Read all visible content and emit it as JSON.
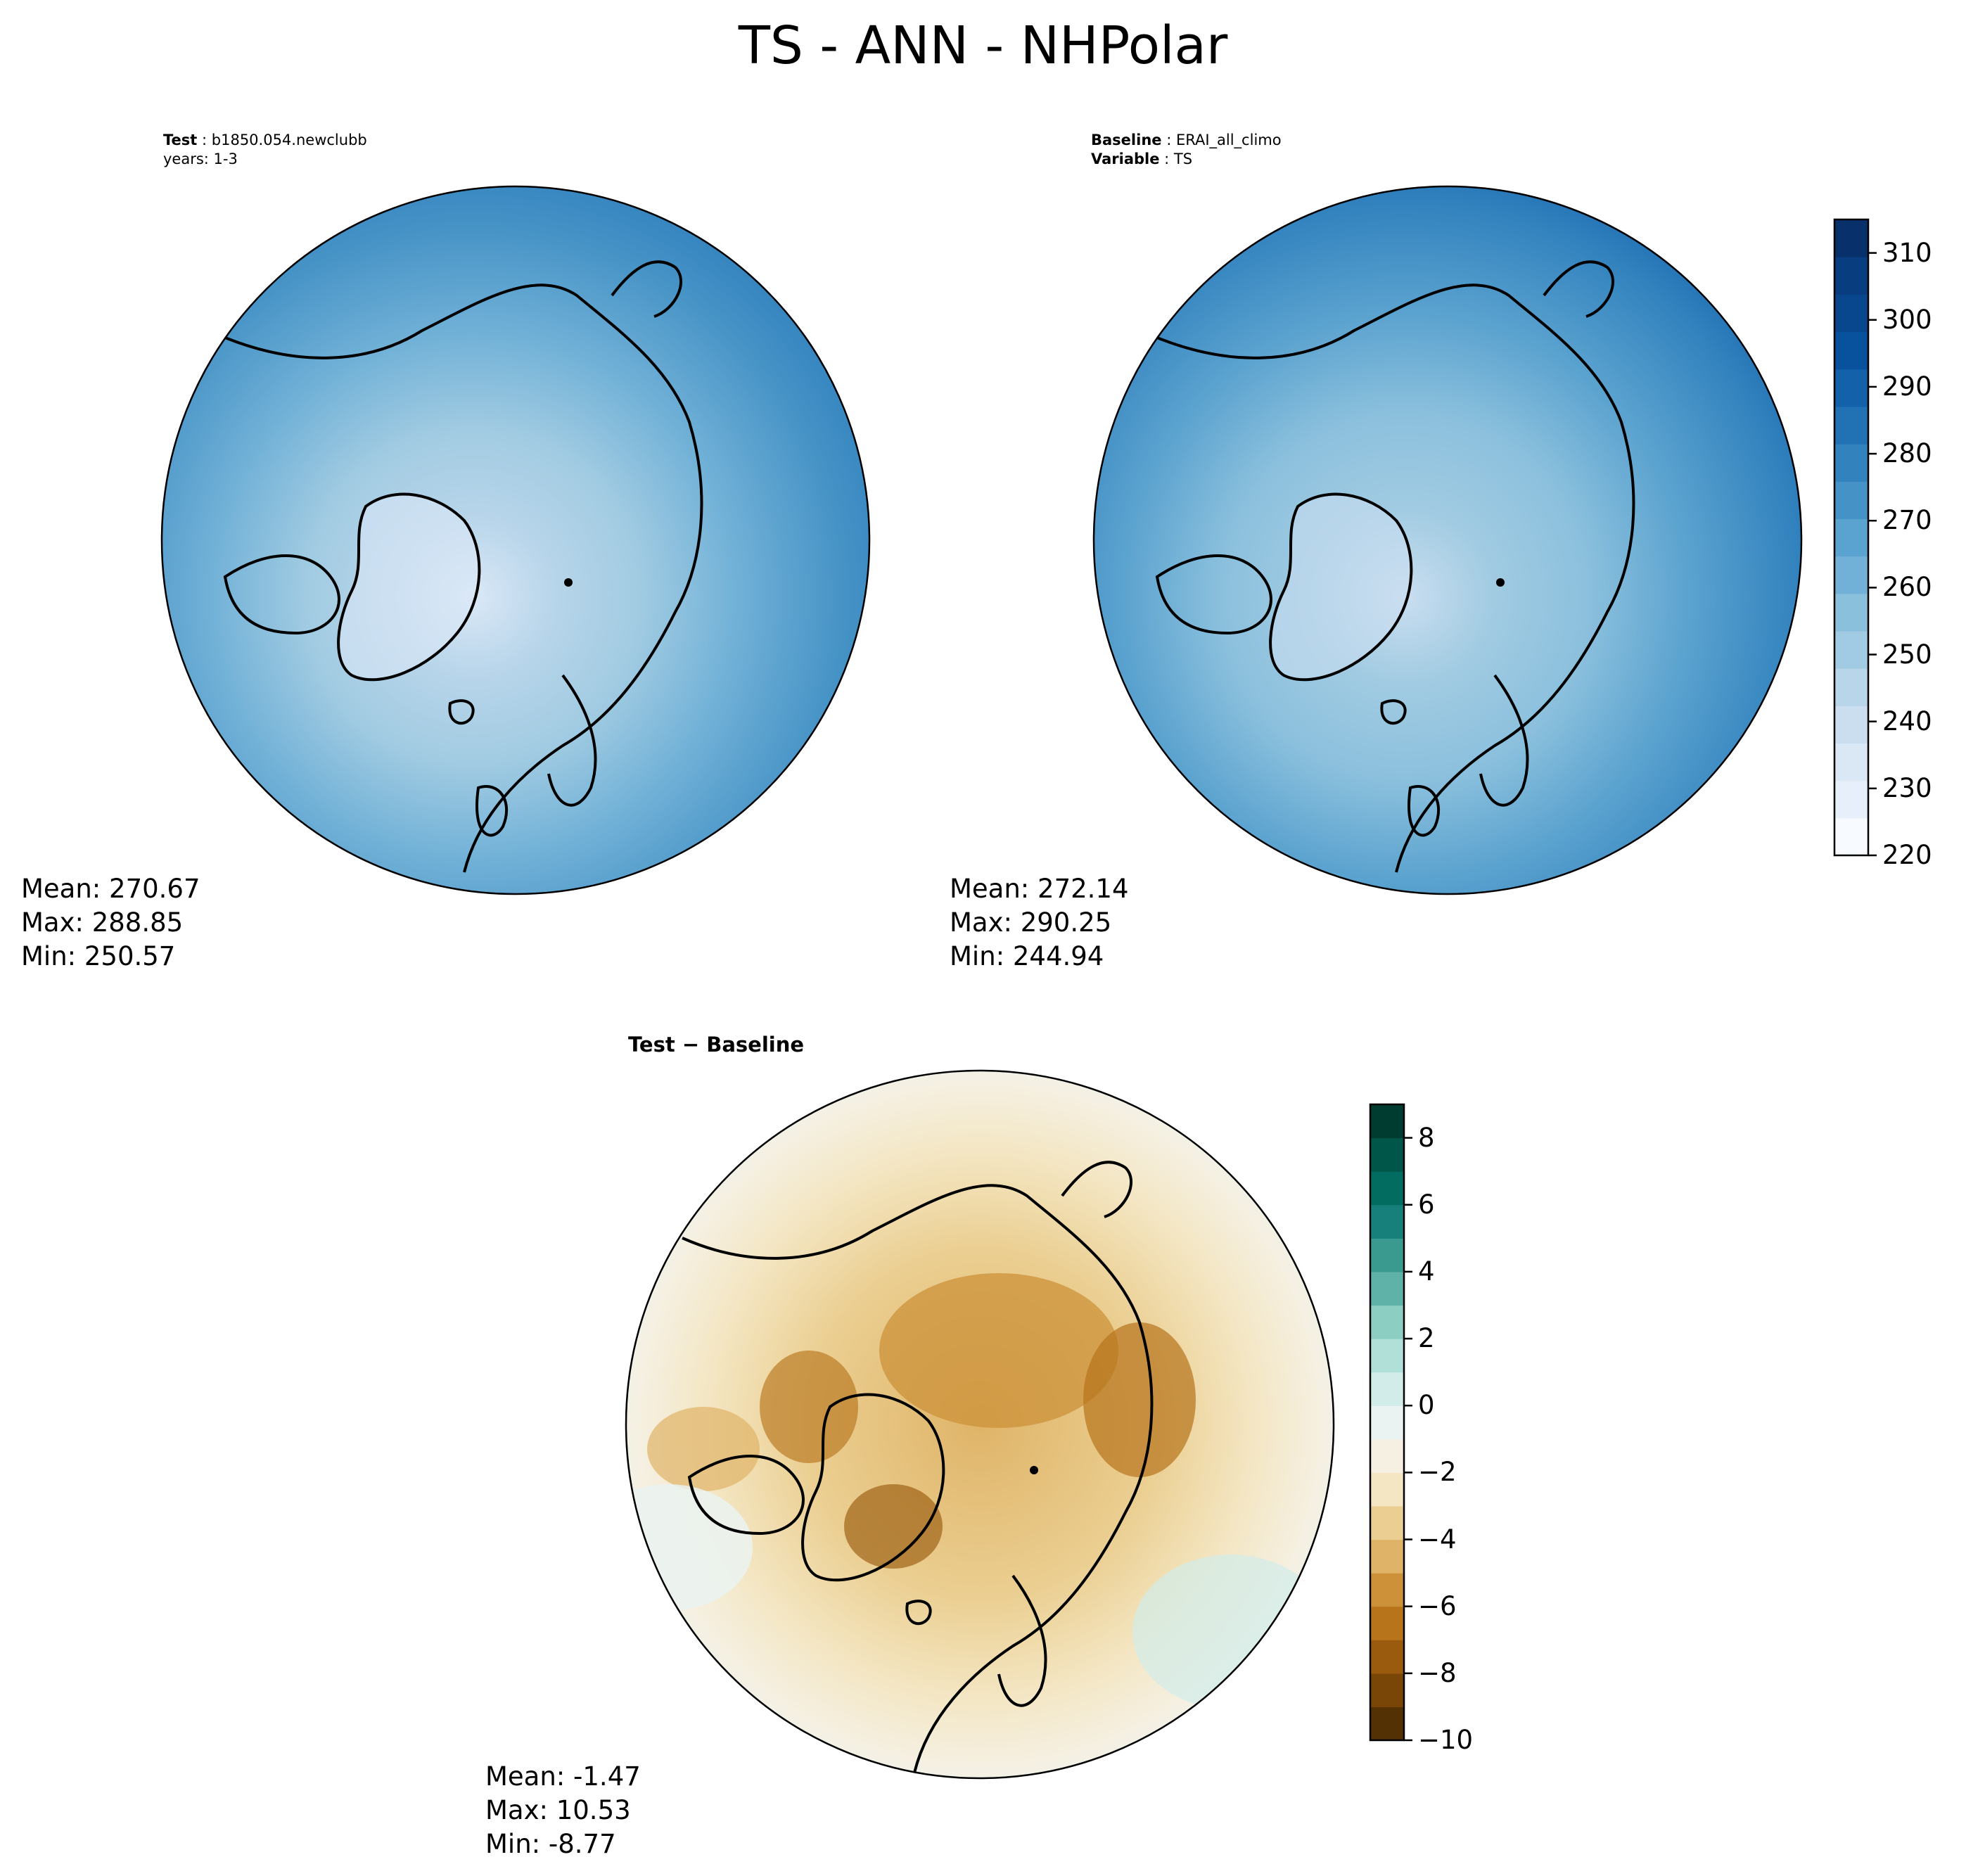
{
  "title": "TS - ANN - NHPolar",
  "test_panel": {
    "label_key": "Test",
    "label_value": "b1850.054.newclubb",
    "years": "years: 1-3",
    "stats": {
      "mean": "Mean: 270.67",
      "max": "Max: 288.85",
      "min": "Min: 250.57"
    }
  },
  "baseline_panel": {
    "label_key": "Baseline",
    "label_value": "ERAI_all_climo",
    "variable_key": "Variable",
    "variable_value": "TS",
    "stats": {
      "mean": "Mean: 272.14",
      "max": "Max: 290.25",
      "min": "Min: 244.94"
    }
  },
  "diff_panel": {
    "title": "Test − Baseline",
    "stats": {
      "mean": "Mean: -1.47",
      "max": "Max: 10.53",
      "min": "Min: -8.77"
    }
  },
  "colorbar_main": {
    "ticks": [
      "220",
      "230",
      "240",
      "250",
      "260",
      "270",
      "280",
      "290",
      "300",
      "310"
    ],
    "range": [
      220,
      315
    ],
    "colors": [
      "#f7fbff",
      "#e7f0fa",
      "#dae8f6",
      "#cadef0",
      "#b8d5ea",
      "#a1cbe2",
      "#8bc0dd",
      "#71b1d7",
      "#5aa2cf",
      "#4592c6",
      "#3282be",
      "#2171b5",
      "#1361a9",
      "#08519c",
      "#08478d",
      "#083e80",
      "#08306b"
    ]
  },
  "colorbar_diff": {
    "ticks": [
      "−10",
      "−8",
      "−6",
      "−4",
      "−2",
      "0",
      "2",
      "4",
      "6",
      "8"
    ],
    "range": [
      -10,
      9
    ],
    "colors": [
      "#543005",
      "#7a4607",
      "#9a5b0e",
      "#b7741b",
      "#cc9139",
      "#dfb468",
      "#ebcf92",
      "#f4e6c3",
      "#f5f0e2",
      "#eaf3f1",
      "#d2ede9",
      "#b1e0d8",
      "#8ccec2",
      "#5fb2a7",
      "#3b9a90",
      "#18807a",
      "#016c5f",
      "#01564a",
      "#003c30"
    ]
  }
}
